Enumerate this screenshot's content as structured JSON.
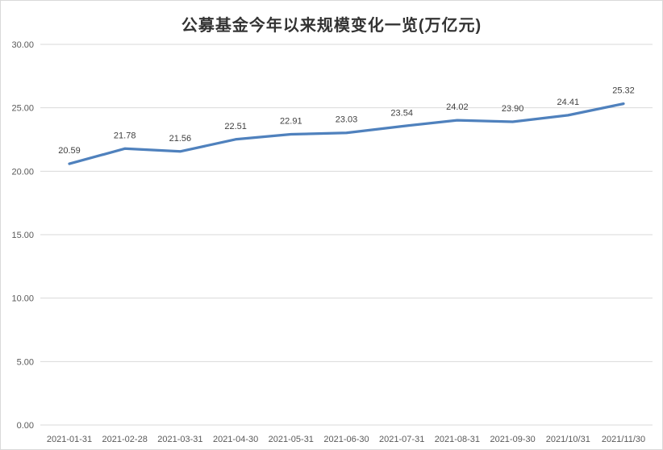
{
  "chart_data": {
    "type": "line",
    "title": "公募基金今年以来规模变化一览(万亿元)",
    "categories": [
      "2021-01-31",
      "2021-02-28",
      "2021-03-31",
      "2021-04-30",
      "2021-05-31",
      "2021-06-30",
      "2021-07-31",
      "2021-08-31",
      "2021-09-30",
      "2021/10/31",
      "2021/11/30"
    ],
    "values": [
      20.59,
      21.78,
      21.56,
      22.51,
      22.91,
      23.03,
      23.54,
      24.02,
      23.9,
      24.41,
      25.32
    ],
    "value_labels": [
      "20.59",
      "21.78",
      "21.56",
      "22.51",
      "22.91",
      "23.03",
      "23.54",
      "24.02",
      "23.90",
      "24.41",
      "25.32"
    ],
    "xlabel": "",
    "ylabel": "",
    "ylim": [
      0,
      30
    ],
    "ytick_step": 5,
    "ytick_labels": [
      "0.00",
      "5.00",
      "10.00",
      "15.00",
      "20.00",
      "25.00",
      "30.00"
    ],
    "grid": true,
    "legend": "none",
    "colors": {
      "line": "#4f81bd",
      "gridline": "#d9d9d9",
      "axis_label": "#595959",
      "data_label": "#3f3f3f",
      "title": "#333333",
      "background": "#ffffff",
      "frame_border": "#d9d9d9"
    }
  }
}
